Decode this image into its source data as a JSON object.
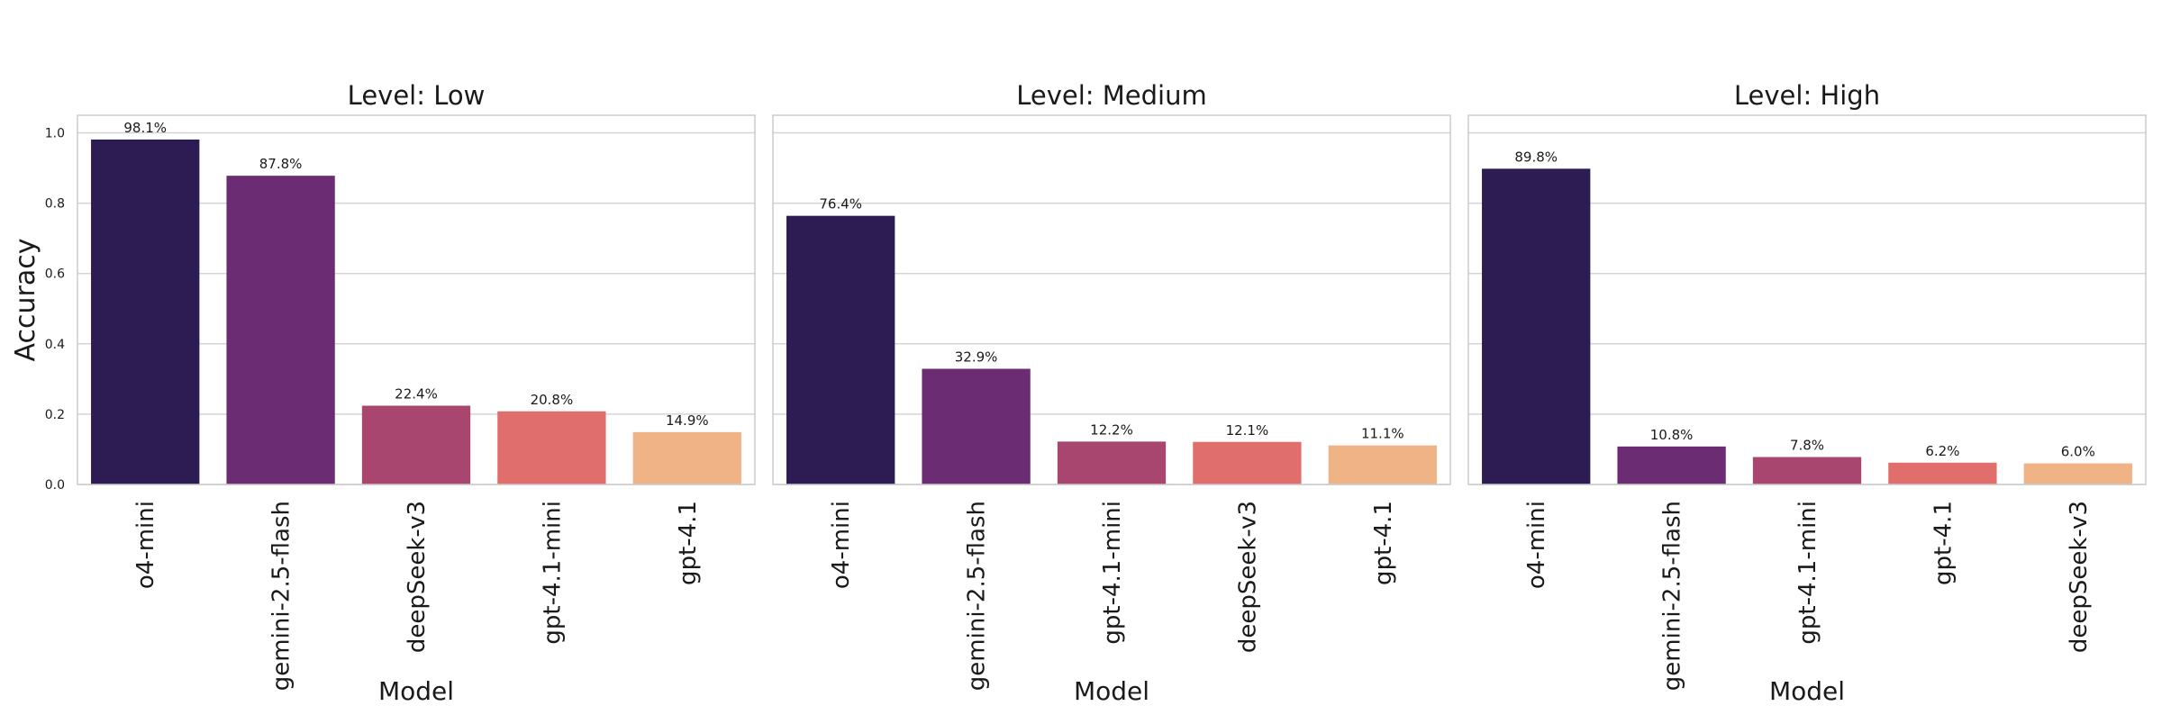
{
  "chart_data": [
    {
      "type": "bar",
      "title": "Level: Low",
      "xlabel": "Model",
      "ylabel": "Accuracy",
      "ylim": [
        0,
        1.05
      ],
      "yticks": [
        "0.0",
        "0.2",
        "0.4",
        "0.6",
        "0.8",
        "1.0"
      ],
      "grid": "horizontal",
      "categories": [
        "o4-mini",
        "gemini-2.5-flash",
        "deepSeek-v3",
        "gpt-4.1-mini",
        "gpt-4.1"
      ],
      "values": [
        0.981,
        0.878,
        0.224,
        0.208,
        0.149
      ],
      "data_labels": [
        "98.1%",
        "87.8%",
        "22.4%",
        "20.8%",
        "14.9%"
      ],
      "colors": [
        "#2d1b54",
        "#6b2c74",
        "#a8466f",
        "#e06e6c",
        "#f0b386"
      ]
    },
    {
      "type": "bar",
      "title": "Level: Medium",
      "xlabel": "Model",
      "ylabel": "",
      "ylim": [
        0,
        1.05
      ],
      "yticks": [],
      "grid": "horizontal",
      "categories": [
        "o4-mini",
        "gemini-2.5-flash",
        "gpt-4.1-mini",
        "deepSeek-v3",
        "gpt-4.1"
      ],
      "values": [
        0.764,
        0.329,
        0.122,
        0.121,
        0.111
      ],
      "data_labels": [
        "76.4%",
        "32.9%",
        "12.2%",
        "12.1%",
        "11.1%"
      ],
      "colors": [
        "#2d1b54",
        "#6b2c74",
        "#a8466f",
        "#e06e6c",
        "#f0b386"
      ]
    },
    {
      "type": "bar",
      "title": "Level: High",
      "xlabel": "Model",
      "ylabel": "",
      "ylim": [
        0,
        1.05
      ],
      "yticks": [],
      "grid": "horizontal",
      "categories": [
        "o4-mini",
        "gemini-2.5-flash",
        "gpt-4.1-mini",
        "gpt-4.1",
        "deepSeek-v3"
      ],
      "values": [
        0.898,
        0.108,
        0.078,
        0.062,
        0.06
      ],
      "data_labels": [
        "89.8%",
        "10.8%",
        "7.8%",
        "6.2%",
        "6.0%"
      ],
      "colors": [
        "#2d1b54",
        "#6b2c74",
        "#a8466f",
        "#e06e6c",
        "#f0b386"
      ]
    }
  ]
}
